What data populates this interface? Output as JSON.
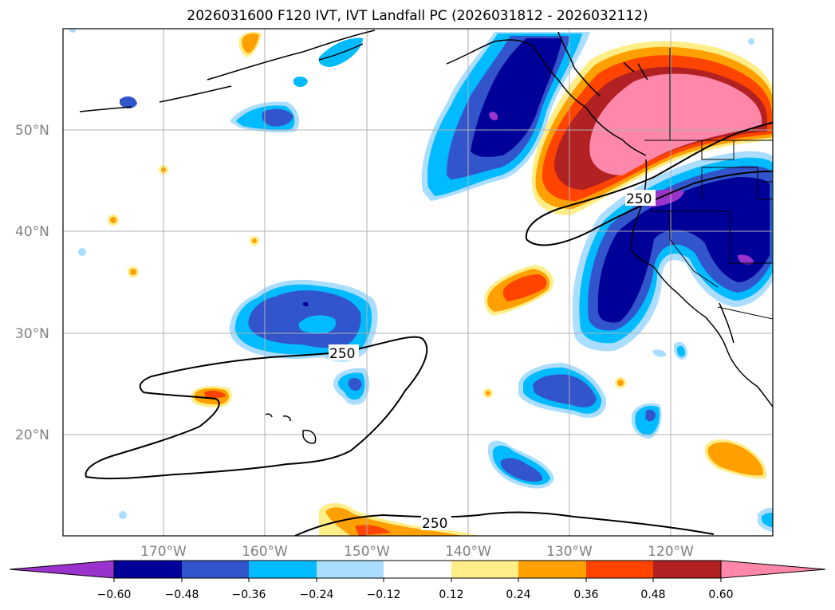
{
  "title": "2026031600 F120 IVT, IVT Landfall PC (2026031812 - 2026032112)",
  "colors": {
    "neg5": "#9933cc",
    "neg4": "#000099",
    "neg3": "#3355cc",
    "neg2": "#00bbff",
    "neg1": "#aaddff",
    "zero": "#ffffff",
    "pos1": "#ffee88",
    "pos2": "#ffa000",
    "pos3": "#ff4400",
    "pos4": "#b22222",
    "pos5": "#ff88aa",
    "grid": "#b0b0b0",
    "coast": "#000000"
  },
  "map": {
    "lat_labels": [
      "50°N",
      "40°N",
      "30°N",
      "20°N"
    ],
    "lon_labels": [
      "170°W",
      "160°W",
      "150°W",
      "140°W",
      "130°W",
      "120°W"
    ],
    "contour_labels": [
      "250",
      "250",
      "250"
    ]
  },
  "colorbar": {
    "tick_labels": [
      "−0.60",
      "−0.48",
      "−0.36",
      "−0.24",
      "−0.12",
      "0.12",
      "0.24",
      "0.36",
      "0.48",
      "0.60"
    ]
  },
  "chart_data": {
    "type": "heatmap",
    "title": "2026031600 F120 IVT, IVT Landfall PC (2026031812 - 2026032112)",
    "x_range_deg": [
      -180,
      -110
    ],
    "y_range_deg": [
      10,
      60
    ],
    "levels": [
      -0.6,
      -0.48,
      -0.36,
      -0.24,
      -0.12,
      0.12,
      0.24,
      0.36,
      0.48,
      0.6
    ],
    "contour_value": 250,
    "grid": true,
    "colorbar": "horizontal-bottom"
  }
}
